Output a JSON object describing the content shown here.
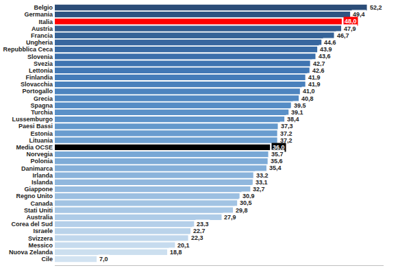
{
  "chart_data": {
    "type": "bar",
    "orientation": "horizontal",
    "categories": [
      "Belgio",
      "Germania",
      "Italia",
      "Austria",
      "Francia",
      "Ungheria",
      "Repubblica Ceca",
      "Slovenia",
      "Svezia",
      "Lettonia",
      "Finlandia",
      "Slovacchia",
      "Portogallo",
      "Grecia",
      "Spagna",
      "Turchia",
      "Lussemburgo",
      "Paesi Bassi",
      "Estonia",
      "Lituania",
      "Media OCSE",
      "Norvegia",
      "Polonia",
      "Danimarca",
      "Irlanda",
      "Islanda",
      "Giappone",
      "Regno Unito",
      "Canada",
      "Stati Uniti",
      "Australia",
      "Corea del Sud",
      "Israele",
      "Svizzera",
      "Messico",
      "Nuova Zelanda",
      "Cile"
    ],
    "values": [
      52.2,
      49.4,
      48.0,
      47.9,
      46.7,
      44.6,
      43.9,
      43.6,
      42.7,
      42.6,
      41.9,
      41.9,
      41.0,
      40.8,
      39.5,
      39.1,
      38.4,
      37.3,
      37.2,
      37.2,
      36.0,
      35.7,
      35.6,
      35.4,
      33.2,
      33.1,
      32.7,
      30.9,
      30.5,
      29.8,
      27.9,
      23.3,
      22.7,
      22.3,
      20.1,
      18.8,
      7.0
    ],
    "value_labels": [
      "52,2",
      "49,4",
      "48,0",
      "47,9",
      "46,7",
      "44,6",
      "43,9",
      "43,6",
      "42,7",
      "42,6",
      "41,9",
      "41,9",
      "41,0",
      "40,8",
      "39,5",
      "39,1",
      "38,4",
      "37,3",
      "37,2",
      "37,2",
      "36,0",
      "35,7",
      "35,6",
      "35,4",
      "33,2",
      "33,1",
      "32,7",
      "30,9",
      "30,5",
      "29,8",
      "27,9",
      "23,3",
      "22,7",
      "22,3",
      "20,1",
      "18,8",
      "7,0"
    ],
    "colors": [
      "#2c4d78",
      "#2f5482",
      "#ff0000",
      "#345d8f",
      "#366297",
      "#38669e",
      "#3a6ba5",
      "#3c6fab",
      "#3f74b1",
      "#4278b5",
      "#457cb9",
      "#4980bc",
      "#4d84bf",
      "#5188c2",
      "#558cc5",
      "#5a90c7",
      "#5f94ca",
      "#6498cc",
      "#699ccf",
      "#6ea0d1",
      "#000000",
      "#78a7d5",
      "#7eabd7",
      "#84afd9",
      "#8ab3db",
      "#90b7dd",
      "#96bbdf",
      "#9cbfe1",
      "#a2c3e3",
      "#a8c7e5",
      "#aecbe7",
      "#b4cfe9",
      "#bad3ea",
      "#c0d7ec",
      "#c6dbee",
      "#ccdfef",
      "#d2e3f1"
    ],
    "xlim": [
      0,
      55
    ],
    "tick_labels": "y",
    "data_labels": true,
    "grid": false
  }
}
